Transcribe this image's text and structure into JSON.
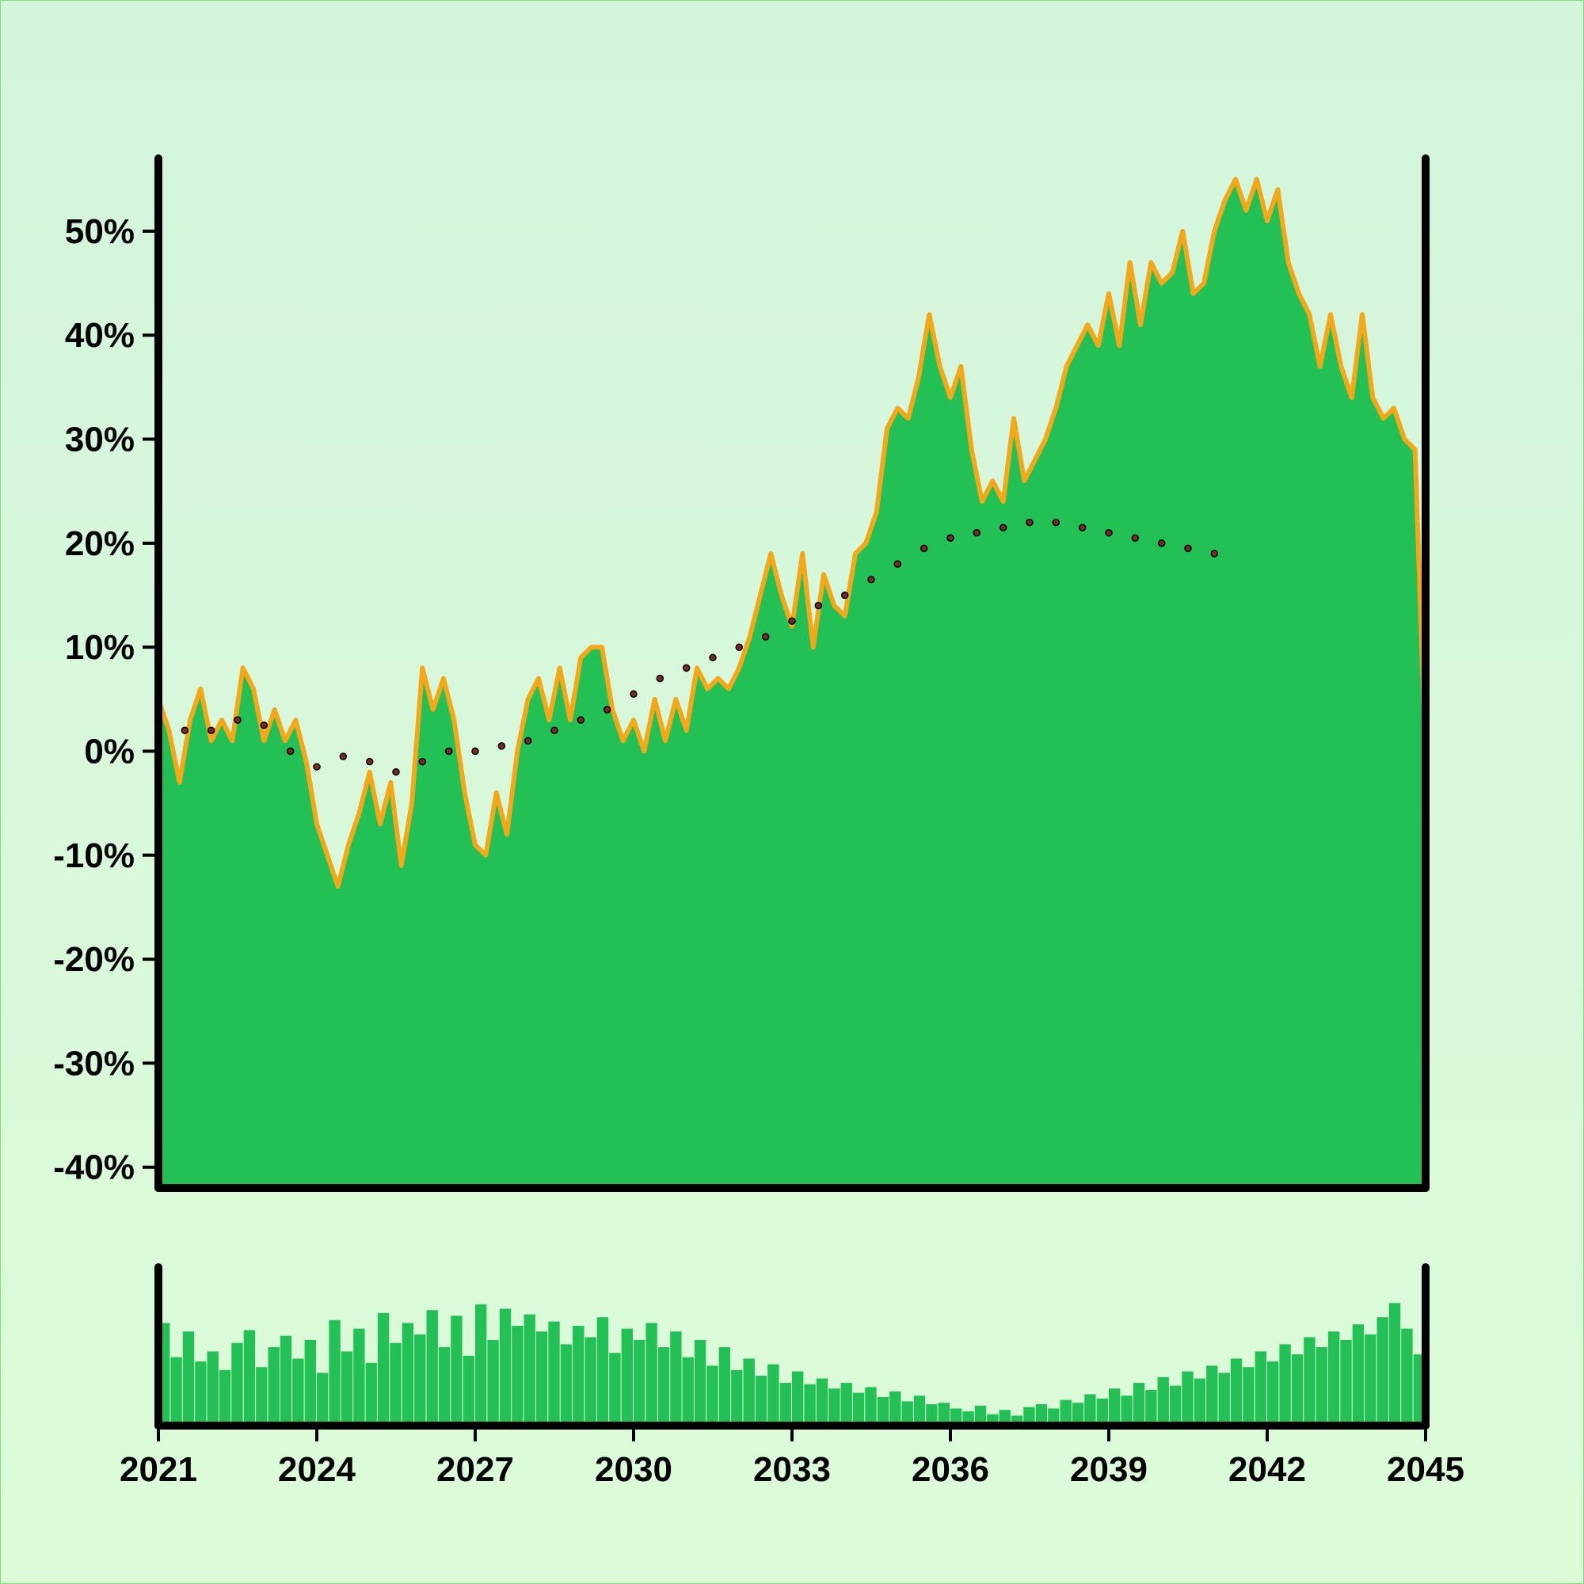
{
  "chart_data": {
    "type": "area",
    "title": "",
    "xlabel": "",
    "ylabel": "",
    "x_range": [
      2021,
      2045
    ],
    "x_ticks": [
      "2021",
      "2024",
      "2027",
      "2030",
      "2033",
      "2036",
      "2039",
      "2042",
      "2045"
    ],
    "y_range": [
      -42,
      57
    ],
    "y_ticks": [
      "-40%",
      "-30%",
      "-20%",
      "-10%",
      "0%",
      "10%",
      "20%",
      "30%",
      "40%",
      "50%"
    ],
    "y_tick_values": [
      -40,
      -30,
      -20,
      -10,
      0,
      10,
      20,
      30,
      40,
      50
    ],
    "grid": false,
    "legend": "none",
    "colors": {
      "background": "#d6f7da",
      "area_fill": "#22c055",
      "area_outline": "#f2a818",
      "trend_dots": "#7a2a20",
      "volume_bars": "#22c055",
      "axes": "#000000"
    },
    "series": [
      {
        "style": "area-with-outline",
        "points": [
          [
            2021.0,
            5
          ],
          [
            2021.2,
            2
          ],
          [
            2021.4,
            -3
          ],
          [
            2021.6,
            3
          ],
          [
            2021.8,
            6
          ],
          [
            2022.0,
            1
          ],
          [
            2022.2,
            3
          ],
          [
            2022.4,
            1
          ],
          [
            2022.6,
            8
          ],
          [
            2022.8,
            6
          ],
          [
            2023.0,
            1
          ],
          [
            2023.2,
            4
          ],
          [
            2023.4,
            1
          ],
          [
            2023.6,
            3
          ],
          [
            2023.8,
            -1
          ],
          [
            2024.0,
            -7
          ],
          [
            2024.2,
            -10
          ],
          [
            2024.4,
            -13
          ],
          [
            2024.6,
            -9
          ],
          [
            2024.8,
            -6
          ],
          [
            2025.0,
            -2
          ],
          [
            2025.2,
            -7
          ],
          [
            2025.4,
            -3
          ],
          [
            2025.6,
            -11
          ],
          [
            2025.8,
            -5
          ],
          [
            2026.0,
            8
          ],
          [
            2026.2,
            4
          ],
          [
            2026.4,
            7
          ],
          [
            2026.6,
            3
          ],
          [
            2026.8,
            -4
          ],
          [
            2027.0,
            -9
          ],
          [
            2027.2,
            -10
          ],
          [
            2027.4,
            -4
          ],
          [
            2027.6,
            -8
          ],
          [
            2027.8,
            0
          ],
          [
            2028.0,
            5
          ],
          [
            2028.2,
            7
          ],
          [
            2028.4,
            3
          ],
          [
            2028.6,
            8
          ],
          [
            2028.8,
            3
          ],
          [
            2029.0,
            9
          ],
          [
            2029.2,
            10
          ],
          [
            2029.4,
            10
          ],
          [
            2029.6,
            4
          ],
          [
            2029.8,
            1
          ],
          [
            2030.0,
            3
          ],
          [
            2030.2,
            0
          ],
          [
            2030.4,
            5
          ],
          [
            2030.6,
            1
          ],
          [
            2030.8,
            5
          ],
          [
            2031.0,
            2
          ],
          [
            2031.2,
            8
          ],
          [
            2031.4,
            6
          ],
          [
            2031.6,
            7
          ],
          [
            2031.8,
            6
          ],
          [
            2032.0,
            8
          ],
          [
            2032.2,
            11
          ],
          [
            2032.4,
            15
          ],
          [
            2032.6,
            19
          ],
          [
            2032.8,
            15
          ],
          [
            2033.0,
            12
          ],
          [
            2033.2,
            19
          ],
          [
            2033.4,
            10
          ],
          [
            2033.6,
            17
          ],
          [
            2033.8,
            14
          ],
          [
            2034.0,
            13
          ],
          [
            2034.2,
            19
          ],
          [
            2034.4,
            20
          ],
          [
            2034.6,
            23
          ],
          [
            2034.8,
            31
          ],
          [
            2035.0,
            33
          ],
          [
            2035.2,
            32
          ],
          [
            2035.4,
            36
          ],
          [
            2035.6,
            42
          ],
          [
            2035.8,
            37
          ],
          [
            2036.0,
            34
          ],
          [
            2036.2,
            37
          ],
          [
            2036.4,
            29
          ],
          [
            2036.6,
            24
          ],
          [
            2036.8,
            26
          ],
          [
            2037.0,
            24
          ],
          [
            2037.2,
            32
          ],
          [
            2037.4,
            26
          ],
          [
            2037.6,
            28
          ],
          [
            2037.8,
            30
          ],
          [
            2038.0,
            33
          ],
          [
            2038.2,
            37
          ],
          [
            2038.4,
            39
          ],
          [
            2038.6,
            41
          ],
          [
            2038.8,
            39
          ],
          [
            2039.0,
            44
          ],
          [
            2039.2,
            39
          ],
          [
            2039.4,
            47
          ],
          [
            2039.6,
            41
          ],
          [
            2039.8,
            47
          ],
          [
            2040.0,
            45
          ],
          [
            2040.2,
            46
          ],
          [
            2040.4,
            50
          ],
          [
            2040.6,
            44
          ],
          [
            2040.8,
            45
          ],
          [
            2041.0,
            50
          ],
          [
            2041.2,
            53
          ],
          [
            2041.4,
            55
          ],
          [
            2041.6,
            52
          ],
          [
            2041.8,
            55
          ],
          [
            2042.0,
            51
          ],
          [
            2042.2,
            54
          ],
          [
            2042.4,
            47
          ],
          [
            2042.6,
            44
          ],
          [
            2042.8,
            42
          ],
          [
            2043.0,
            37
          ],
          [
            2043.2,
            42
          ],
          [
            2043.4,
            37
          ],
          [
            2043.6,
            34
          ],
          [
            2043.8,
            42
          ],
          [
            2044.0,
            34
          ],
          [
            2044.2,
            32
          ],
          [
            2044.4,
            33
          ],
          [
            2044.6,
            30
          ],
          [
            2044.8,
            29
          ],
          [
            2045.0,
            -1
          ]
        ]
      }
    ],
    "trend_dotted": [
      [
        2021.0,
        2
      ],
      [
        2021.5,
        2
      ],
      [
        2022.0,
        2
      ],
      [
        2022.5,
        3
      ],
      [
        2023.0,
        2.5
      ],
      [
        2023.5,
        0
      ],
      [
        2024.0,
        -1.5
      ],
      [
        2024.5,
        -0.5
      ],
      [
        2025.0,
        -1
      ],
      [
        2025.5,
        -2
      ],
      [
        2026.0,
        -1
      ],
      [
        2026.5,
        0
      ],
      [
        2027.0,
        0
      ],
      [
        2027.5,
        0.5
      ],
      [
        2028.0,
        1
      ],
      [
        2028.5,
        2
      ],
      [
        2029.0,
        3
      ],
      [
        2029.5,
        4
      ],
      [
        2030.0,
        5.5
      ],
      [
        2030.5,
        7
      ],
      [
        2031.0,
        8
      ],
      [
        2031.5,
        9
      ],
      [
        2032.0,
        10
      ],
      [
        2032.5,
        11
      ],
      [
        2033.0,
        12.5
      ],
      [
        2033.5,
        14
      ],
      [
        2034.0,
        15
      ],
      [
        2034.5,
        16.5
      ],
      [
        2035.0,
        18
      ],
      [
        2035.5,
        19.5
      ],
      [
        2036.0,
        20.5
      ],
      [
        2036.5,
        21
      ],
      [
        2037.0,
        21.5
      ],
      [
        2037.5,
        22
      ],
      [
        2038.0,
        22
      ],
      [
        2038.5,
        21.5
      ],
      [
        2039.0,
        21
      ],
      [
        2039.5,
        20.5
      ],
      [
        2040.0,
        20
      ],
      [
        2040.5,
        19.5
      ],
      [
        2041.0,
        19
      ]
    ],
    "volume_series": [
      0.72,
      0.48,
      0.66,
      0.45,
      0.52,
      0.39,
      0.58,
      0.67,
      0.41,
      0.55,
      0.63,
      0.47,
      0.6,
      0.37,
      0.74,
      0.52,
      0.68,
      0.44,
      0.79,
      0.58,
      0.72,
      0.64,
      0.81,
      0.55,
      0.77,
      0.49,
      0.85,
      0.6,
      0.82,
      0.7,
      0.78,
      0.66,
      0.73,
      0.57,
      0.7,
      0.62,
      0.76,
      0.51,
      0.68,
      0.6,
      0.72,
      0.55,
      0.66,
      0.48,
      0.6,
      0.42,
      0.55,
      0.39,
      0.47,
      0.35,
      0.43,
      0.3,
      0.38,
      0.29,
      0.33,
      0.26,
      0.3,
      0.23,
      0.27,
      0.2,
      0.24,
      0.17,
      0.21,
      0.15,
      0.16,
      0.12,
      0.1,
      0.14,
      0.08,
      0.11,
      0.07,
      0.13,
      0.15,
      0.12,
      0.18,
      0.16,
      0.22,
      0.19,
      0.26,
      0.21,
      0.3,
      0.25,
      0.34,
      0.28,
      0.38,
      0.33,
      0.42,
      0.37,
      0.47,
      0.41,
      0.52,
      0.45,
      0.57,
      0.5,
      0.62,
      0.55,
      0.66,
      0.6,
      0.71,
      0.64,
      0.76,
      0.86,
      0.68,
      0.5
    ]
  }
}
